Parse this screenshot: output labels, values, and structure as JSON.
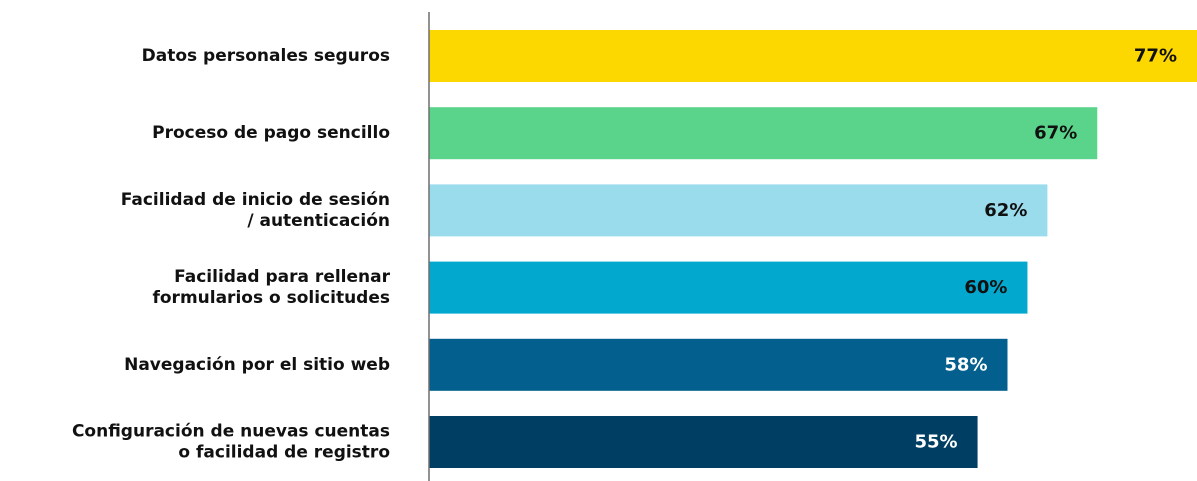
{
  "chart_data": {
    "type": "bar",
    "orientation": "horizontal",
    "categories": [
      [
        "Datos personales seguros"
      ],
      [
        "Proceso de pago sencillo"
      ],
      [
        "Facilidad de inicio de sesión",
        "/ autenticación"
      ],
      [
        "Facilidad para rellenar",
        "formularios o solicitudes"
      ],
      [
        "Navegación por el sitio web"
      ],
      [
        "Configuración de nuevas cuentas",
        "o facilidad de registro"
      ]
    ],
    "values": [
      77,
      67,
      62,
      60,
      58,
      55
    ],
    "value_labels": [
      "77%",
      "67%",
      "62%",
      "60%",
      "58%",
      "55%"
    ],
    "colors": [
      "#fcd700",
      "#5bd48b",
      "#9adcec",
      "#02a8cd",
      "#025f8e",
      "#003f63"
    ],
    "label_colors": [
      "#111111",
      "#111111",
      "#111111",
      "#111111",
      "#ffffff",
      "#ffffff"
    ],
    "xlim": [
      0,
      77
    ],
    "grid": false,
    "legend": "none",
    "title": "",
    "xlabel": "",
    "ylabel": ""
  }
}
